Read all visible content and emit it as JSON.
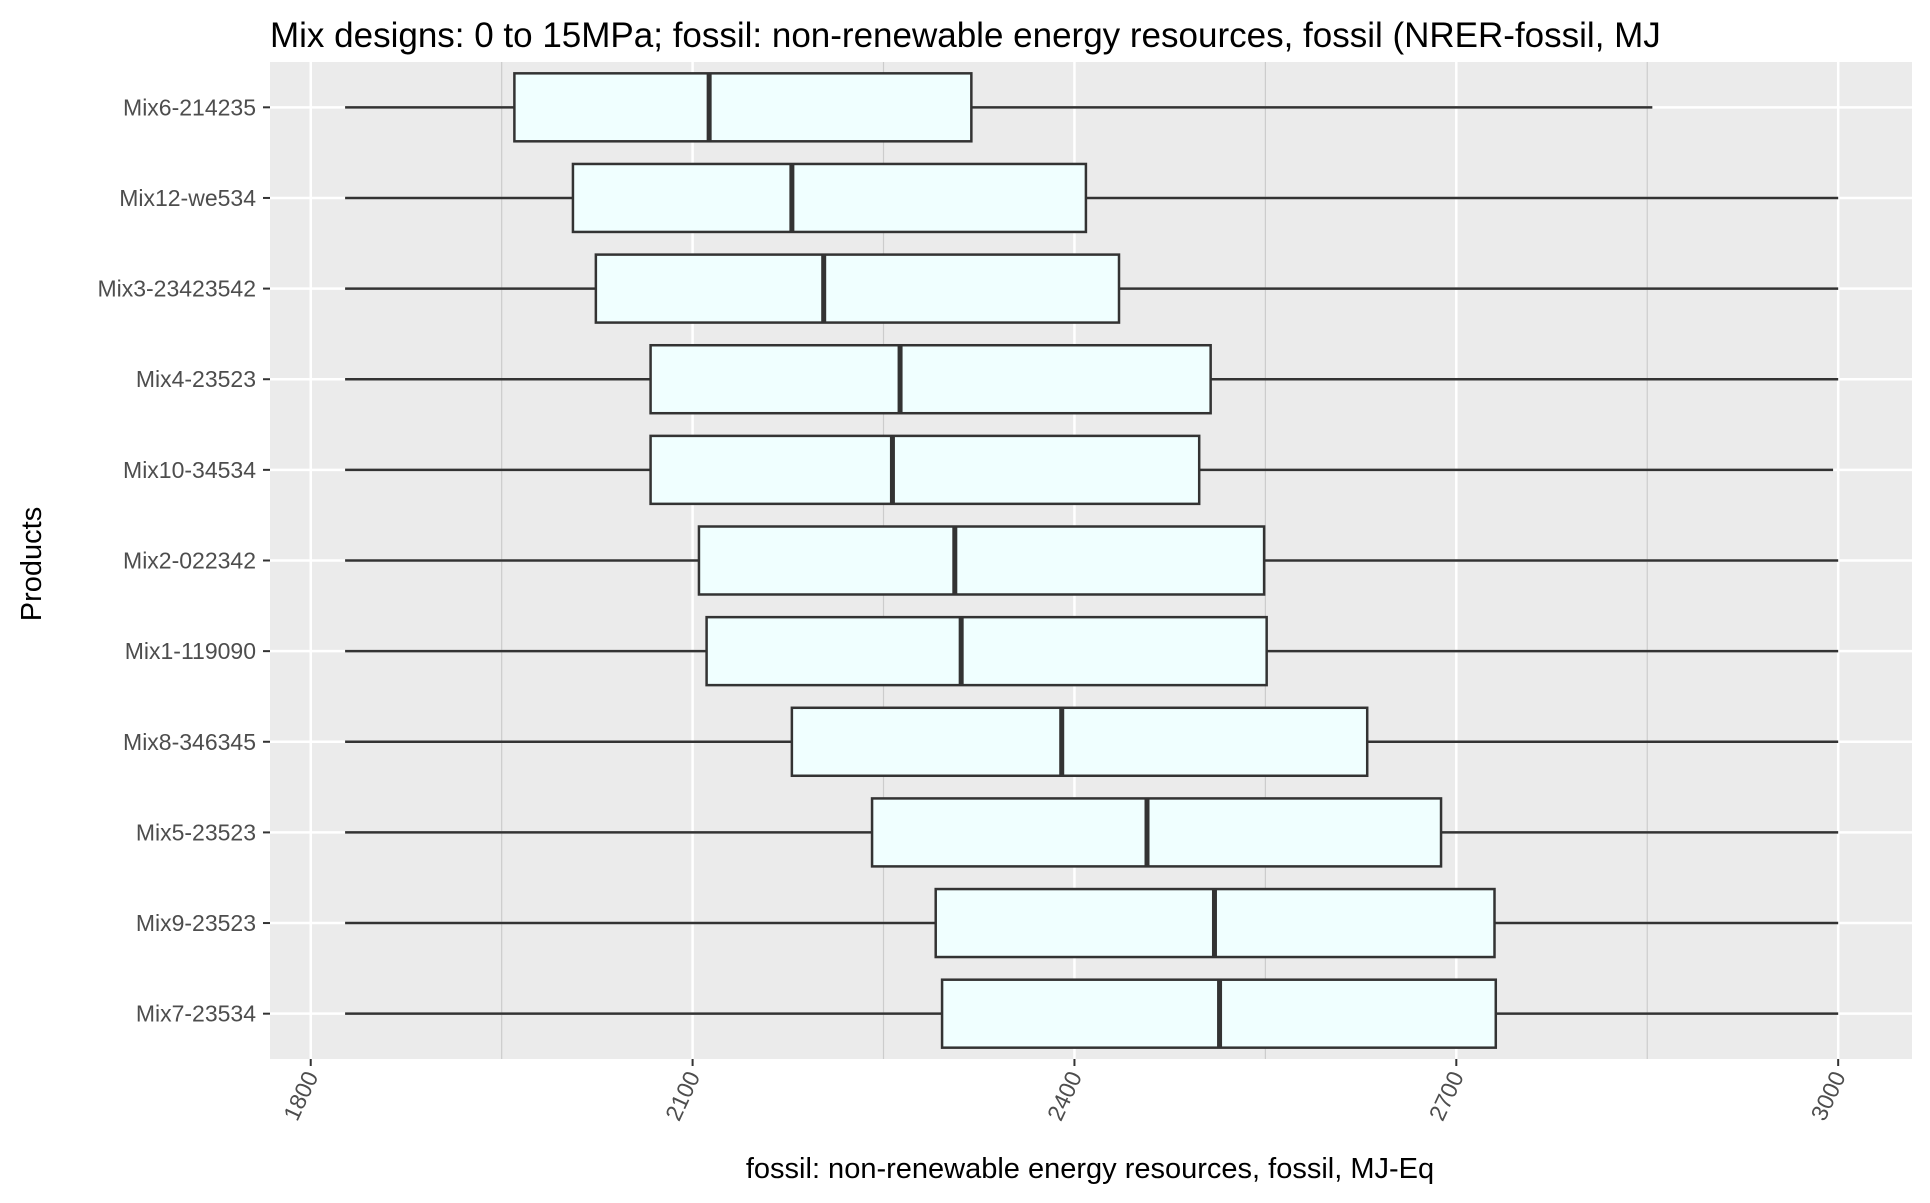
{
  "chart_data": {
    "type": "boxplot",
    "orientation": "horizontal",
    "title": "Mix designs: 0 to 15MPa; fossil: non-renewable energy resources, fossil (NRER-fossil, MJ",
    "xlabel": "fossil: non-renewable energy resources, fossil, MJ-Eq",
    "ylabel": "Products",
    "xlim": [
      1768,
      3058
    ],
    "x_ticks": [
      1800,
      2100,
      2400,
      2700,
      3000
    ],
    "x_minor_ticks": [
      1950,
      2250,
      2550,
      2850
    ],
    "grid": true,
    "legend": "none",
    "colors": {
      "panel": "#ebebeb",
      "grid": "#ffffff",
      "box_fill": "#f0ffff",
      "stroke": "#333333"
    },
    "categories": [
      "Mix6-214235",
      "Mix12-we534",
      "Mix3-23423542",
      "Mix4-23523",
      "Mix10-34534",
      "Mix2-022342",
      "Mix1-119090",
      "Mix8-346345",
      "Mix5-23523",
      "Mix9-23523",
      "Mix7-23534"
    ],
    "boxes": [
      {
        "category": "Mix6-214235",
        "min": 1827,
        "q1": 1960,
        "median": 2113,
        "q3": 2319,
        "max": 2854
      },
      {
        "category": "Mix12-we534",
        "min": 1827,
        "q1": 2006,
        "median": 2178,
        "q3": 2409,
        "max": 3000
      },
      {
        "category": "Mix3-23423542",
        "min": 1827,
        "q1": 2024,
        "median": 2203,
        "q3": 2435,
        "max": 3000
      },
      {
        "category": "Mix4-23523",
        "min": 1827,
        "q1": 2067,
        "median": 2263,
        "q3": 2507,
        "max": 3000
      },
      {
        "category": "Mix10-34534",
        "min": 1827,
        "q1": 2067,
        "median": 2257,
        "q3": 2498,
        "max": 2996
      },
      {
        "category": "Mix2-022342",
        "min": 1827,
        "q1": 2105,
        "median": 2306,
        "q3": 2549,
        "max": 3000
      },
      {
        "category": "Mix1-119090",
        "min": 1827,
        "q1": 2111,
        "median": 2311,
        "q3": 2551,
        "max": 3000
      },
      {
        "category": "Mix8-346345",
        "min": 1827,
        "q1": 2178,
        "median": 2390,
        "q3": 2630,
        "max": 3000
      },
      {
        "category": "Mix5-23523",
        "min": 1827,
        "q1": 2241,
        "median": 2457,
        "q3": 2688,
        "max": 3000
      },
      {
        "category": "Mix9-23523",
        "min": 1827,
        "q1": 2291,
        "median": 2510,
        "q3": 2730,
        "max": 3000
      },
      {
        "category": "Mix7-23534",
        "min": 1827,
        "q1": 2296,
        "median": 2514,
        "q3": 2731,
        "max": 3000
      }
    ]
  }
}
